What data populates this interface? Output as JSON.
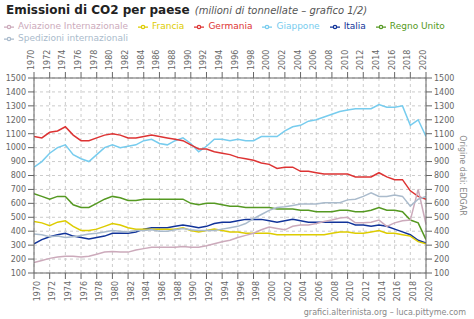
{
  "chart_data": {
    "type": "line",
    "title": "Emissioni di CO2 per paese",
    "subtitle": "(milioni di tonnellate – grafico 1/2)",
    "annotation": "grafici.alterinista.org – luca.pittyme.com",
    "y2label": "Origine dati: EDGAR",
    "x": [
      1970,
      1971,
      1972,
      1973,
      1974,
      1975,
      1976,
      1977,
      1978,
      1979,
      1980,
      1981,
      1982,
      1983,
      1984,
      1985,
      1986,
      1987,
      1988,
      1989,
      1990,
      1991,
      1992,
      1993,
      1994,
      1995,
      1996,
      1997,
      1998,
      1999,
      2000,
      2001,
      2002,
      2003,
      2004,
      2005,
      2006,
      2007,
      2008,
      2009,
      2010,
      2011,
      2012,
      2013,
      2014,
      2015,
      2016,
      2017,
      2018,
      2019,
      2020
    ],
    "xlim": [
      1970,
      2020
    ],
    "xticks": [
      1970,
      1972,
      1974,
      1976,
      1978,
      1980,
      1982,
      1984,
      1986,
      1988,
      1990,
      1992,
      1994,
      1996,
      1998,
      2000,
      2002,
      2004,
      2006,
      2008,
      2010,
      2012,
      2014,
      2016,
      2018,
      2020
    ],
    "ylim": [
      100,
      1500
    ],
    "yticks": [
      100,
      200,
      300,
      400,
      500,
      600,
      700,
      800,
      900,
      1000,
      1100,
      1200,
      1300,
      1400,
      1500
    ],
    "y2lim": [
      100,
      1500
    ],
    "y2ticks": [
      100,
      200,
      300,
      400,
      500,
      600,
      700,
      800,
      900,
      1000,
      1100,
      1200,
      1300,
      1400,
      1500
    ],
    "grid": true,
    "legend": "upper left",
    "series": [
      {
        "name": "Giappone",
        "color": "#77ccee",
        "values": [
          860,
          900,
          960,
          1000,
          1020,
          950,
          920,
          900,
          950,
          1000,
          1020,
          1000,
          1010,
          1020,
          1050,
          1060,
          1030,
          1020,
          1050,
          1070,
          1030,
          970,
          1010,
          1060,
          1060,
          1050,
          1060,
          1050,
          1050,
          1080,
          1080,
          1080,
          1120,
          1150,
          1160,
          1190,
          1200,
          1220,
          1240,
          1260,
          1270,
          1280,
          1280,
          1280,
          1310,
          1290,
          1290,
          1300,
          1160,
          1200,
          1080
        ]
      },
      {
        "name": "Germania",
        "color": "#dd3333",
        "values": [
          1080,
          1070,
          1110,
          1120,
          1150,
          1090,
          1050,
          1050,
          1070,
          1090,
          1100,
          1090,
          1070,
          1070,
          1080,
          1090,
          1080,
          1070,
          1060,
          1050,
          1020,
          990,
          990,
          970,
          960,
          950,
          930,
          920,
          910,
          890,
          880,
          850,
          860,
          860,
          830,
          830,
          820,
          810,
          810,
          810,
          810,
          790,
          790,
          790,
          820,
          790,
          770,
          770,
          690,
          650,
          630
        ]
      },
      {
        "name": "Regno Unito",
        "color": "#559922",
        "values": [
          670,
          650,
          630,
          650,
          650,
          590,
          570,
          570,
          600,
          630,
          650,
          640,
          620,
          620,
          630,
          630,
          630,
          630,
          630,
          630,
          600,
          590,
          600,
          600,
          590,
          580,
          580,
          570,
          570,
          570,
          570,
          560,
          560,
          560,
          550,
          550,
          540,
          540,
          540,
          550,
          550,
          540,
          540,
          550,
          570,
          550,
          550,
          540,
          480,
          460,
          340
        ]
      },
      {
        "name": "Italia",
        "color": "#113399",
        "values": [
          310,
          340,
          360,
          375,
          385,
          365,
          355,
          345,
          355,
          365,
          385,
          385,
          385,
          395,
          415,
          425,
          425,
          425,
          435,
          445,
          435,
          425,
          435,
          455,
          465,
          465,
          475,
          485,
          485,
          485,
          475,
          465,
          475,
          485,
          475,
          465,
          465,
          465,
          465,
          465,
          465,
          445,
          445,
          435,
          445,
          435,
          415,
          395,
          375,
          335,
          315
        ]
      },
      {
        "name": "Francia",
        "color": "#ddcc00",
        "values": [
          470,
          460,
          440,
          465,
          475,
          435,
          405,
          405,
          415,
          435,
          455,
          445,
          425,
          415,
          415,
          415,
          415,
          415,
          415,
          425,
          405,
          395,
          405,
          415,
          405,
          395,
          395,
          385,
          385,
          385,
          385,
          375,
          375,
          375,
          375,
          375,
          375,
          375,
          385,
          395,
          395,
          385,
          385,
          395,
          405,
          385,
          385,
          375,
          365,
          325,
          310
        ]
      },
      {
        "name": "Aviazione Internazionale",
        "color": "#ccaabb",
        "values": [
          175,
          190,
          205,
          215,
          220,
          220,
          215,
          220,
          235,
          250,
          255,
          250,
          250,
          265,
          275,
          285,
          285,
          285,
          285,
          290,
          285,
          285,
          295,
          310,
          325,
          335,
          355,
          370,
          385,
          410,
          430,
          420,
          410,
          435,
          445,
          445,
          455,
          470,
          480,
          495,
          500,
          460,
          460,
          465,
          480,
          435,
          460,
          475,
          480,
          700,
          450
        ]
      },
      {
        "name": "Spedizioni internazionali",
        "color": "#aabbcc",
        "values": [
          380,
          375,
          360,
          365,
          355,
          360,
          370,
          380,
          385,
          395,
          405,
          400,
          395,
          405,
          405,
          410,
          400,
          400,
          410,
          420,
          410,
          405,
          405,
          405,
          415,
          425,
          435,
          455,
          490,
          520,
          550,
          570,
          575,
          585,
          595,
          595,
          595,
          605,
          605,
          605,
          625,
          630,
          650,
          675,
          650,
          650,
          660,
          650,
          580,
          630,
          650
        ]
      }
    ]
  }
}
